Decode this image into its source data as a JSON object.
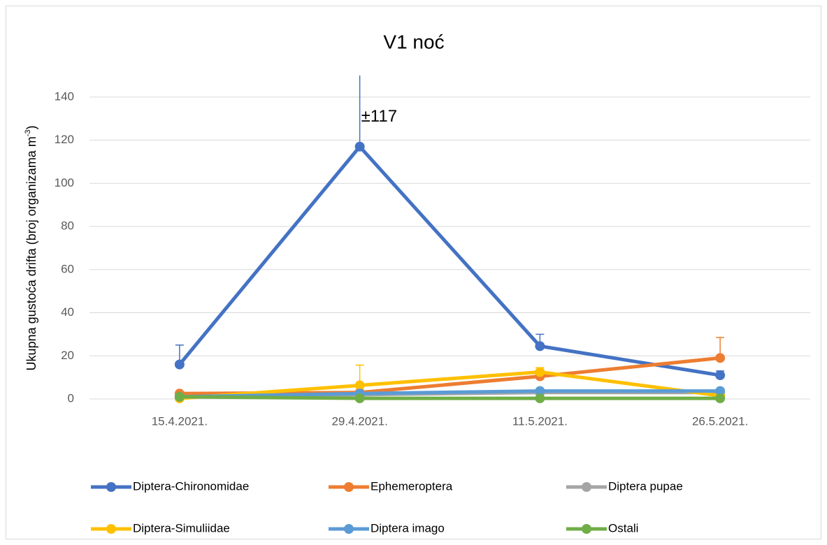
{
  "chart_data": {
    "type": "line",
    "title": "V1 noć",
    "y_label_parts": [
      "Ukupna gustoća drifta (broj organizama m",
      "-3",
      ")"
    ],
    "annotation": "±117",
    "categories": [
      "15.4.2021.",
      "29.4.2021.",
      "11.5.2021.",
      "26.5.2021."
    ],
    "ylim": [
      0,
      150
    ],
    "yticks": [
      0,
      20,
      40,
      60,
      80,
      100,
      120,
      140
    ],
    "grid": true,
    "series": [
      {
        "name": "Diptera-Chironomidae",
        "color": "#4472c4",
        "values": [
          16,
          117,
          24.5,
          11
        ],
        "errors": [
          9,
          117,
          5.5,
          2
        ]
      },
      {
        "name": "Ephemeroptera",
        "color": "#ed7d31",
        "values": [
          2.5,
          3,
          10.5,
          19
        ],
        "errors": [
          null,
          null,
          null,
          9.5
        ]
      },
      {
        "name": "Diptera pupae",
        "color": "#a5a5a5",
        "values": [
          1,
          2,
          3,
          3
        ]
      },
      {
        "name": "Diptera-Simuliidae",
        "color": "#ffc000",
        "values": [
          0.3,
          6.3,
          12.5,
          1.5
        ],
        "errors": [
          null,
          9.4,
          2,
          null
        ]
      },
      {
        "name": "Diptera imago",
        "color": "#5b9bd5",
        "values": [
          1,
          2.5,
          3.7,
          3.7
        ]
      },
      {
        "name": "Ostali",
        "color": "#70ad47",
        "values": [
          1,
          0.3,
          0.3,
          0.3
        ]
      }
    ]
  }
}
